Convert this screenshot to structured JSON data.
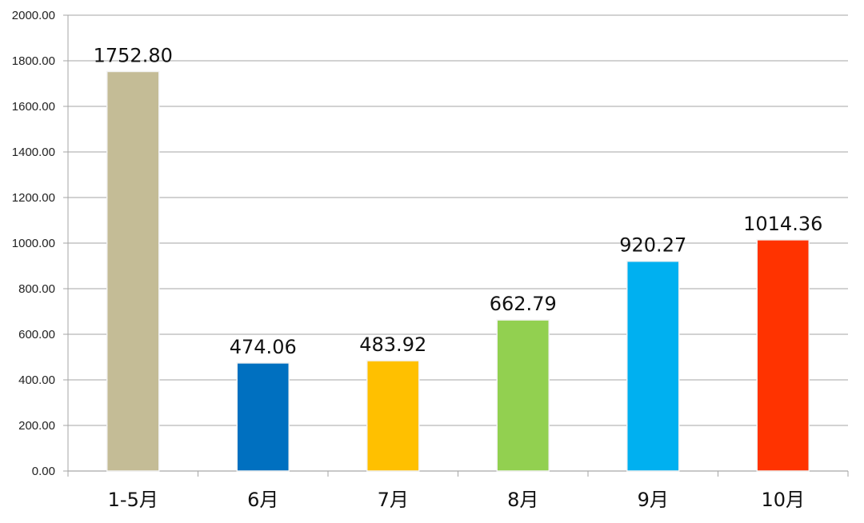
{
  "chart_data": {
    "type": "bar",
    "title": "",
    "xlabel": "",
    "ylabel": "",
    "categories": [
      "1-5月",
      "6月",
      "7月",
      "8月",
      "9月",
      "10月"
    ],
    "values": [
      1752.8,
      474.06,
      483.92,
      662.79,
      920.27,
      1014.36
    ],
    "data_labels": [
      "1752.80",
      "474.06",
      "483.92",
      "662.79",
      "920.27",
      "1014.36"
    ],
    "bar_colors": [
      "#c4bc96",
      "#0070c0",
      "#ffc000",
      "#92d050",
      "#00b0f0",
      "#ff3300"
    ],
    "ylim": [
      0,
      2000
    ],
    "yticks": [
      0,
      200,
      400,
      600,
      800,
      1000,
      1200,
      1400,
      1600,
      1800,
      2000
    ],
    "ytick_labels": [
      "0.00",
      "200.00",
      "400.00",
      "600.00",
      "800.00",
      "1000.00",
      "1200.00",
      "1400.00",
      "1600.00",
      "1800.00",
      "2000.00"
    ],
    "grid": true,
    "legend": "none"
  }
}
